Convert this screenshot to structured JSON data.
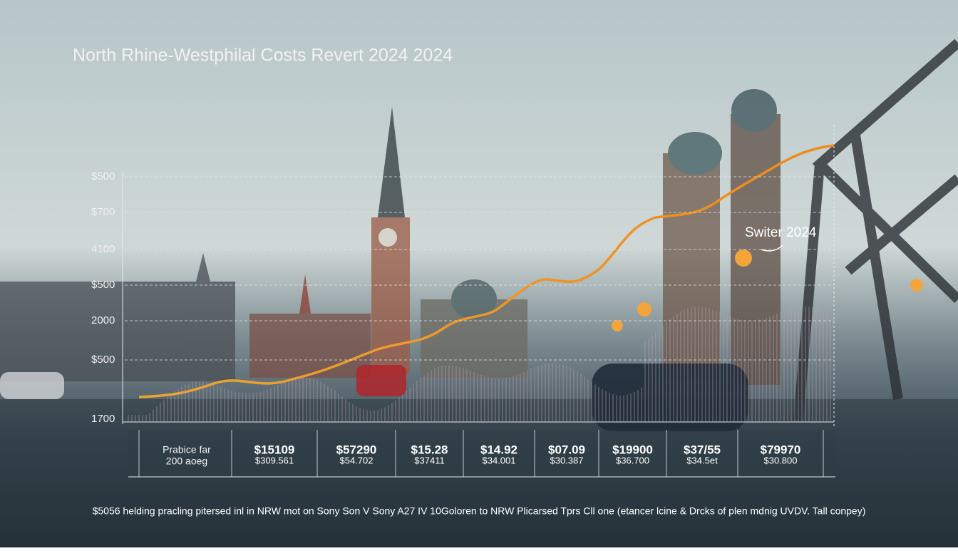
{
  "title": "North Rhine-Westphilal Costs Revert 2024 2024",
  "axis_labels": [
    "$500",
    "$700",
    "4100",
    "$500",
    "2000",
    "$500",
    "1700"
  ],
  "annotation": "Switer 2024",
  "table": {
    "row_header": [
      "Prabice far",
      "200 aoeg"
    ],
    "cells": [
      [
        "$15109",
        "$309.561"
      ],
      [
        "$57290",
        "$54.702"
      ],
      [
        "$15.28",
        "$37411"
      ],
      [
        "$14.92",
        "$34.001"
      ],
      [
        "$07.09",
        "$30.387"
      ],
      [
        "$19900",
        "$36.700"
      ],
      [
        "$37/55",
        "$34.5et"
      ],
      [
        "$79970",
        "$30.800"
      ]
    ]
  },
  "caption": "$5056 helding pracling pitersed inl in NRW mot on Sony Son V Sony A27 IV 10Goloren to NRW Plicarsed Tprs Cll one (etancer lcine & Drcks of plen mdnig UVDV. Tall conpey)"
}
